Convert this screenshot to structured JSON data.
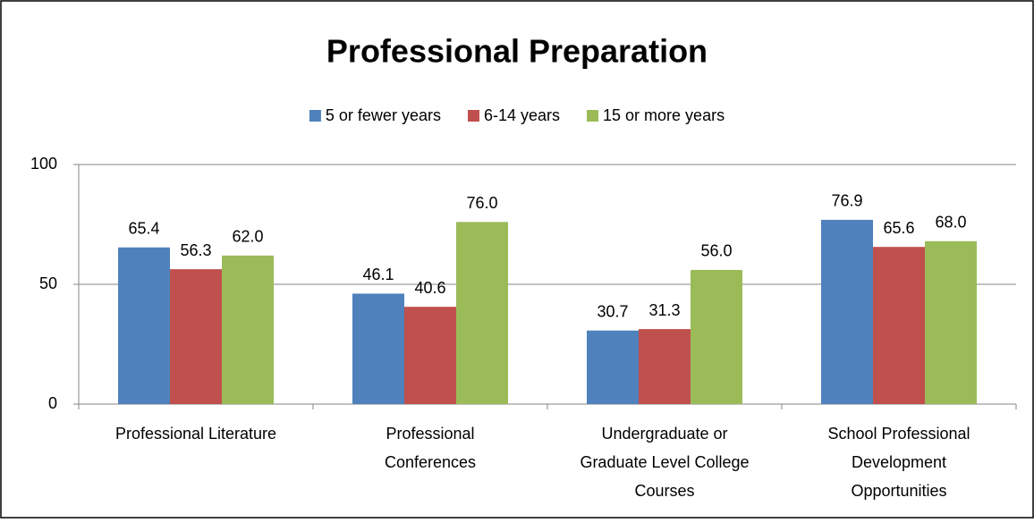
{
  "chart_data": {
    "type": "bar",
    "title": "Professional Preparation",
    "categories": [
      "Professional Literature",
      "Professional Conferences",
      "Undergraduate or Graduate Level College Courses",
      "School Professional Development Opportunities"
    ],
    "series": [
      {
        "name": "5 or fewer years",
        "color": "#4f81bd",
        "values": [
          65.4,
          46.1,
          30.7,
          76.9
        ],
        "value_labels": [
          "65.4",
          "46.1",
          "30.7",
          "76.9"
        ]
      },
      {
        "name": "6-14 years",
        "color": "#c0504d",
        "values": [
          56.3,
          40.6,
          31.3,
          65.6
        ],
        "value_labels": [
          "56.3",
          "40.6",
          "31.3",
          "65.6"
        ]
      },
      {
        "name": "15 or more years",
        "color": "#9bbb59",
        "values": [
          62.0,
          76.0,
          56.0,
          68.0
        ],
        "value_labels": [
          "62.0",
          "76.0",
          "56.0",
          "68.0"
        ]
      }
    ],
    "ylim": [
      0,
      100
    ],
    "yticks": [
      0,
      50,
      100
    ],
    "grid": true,
    "legend": "top"
  }
}
